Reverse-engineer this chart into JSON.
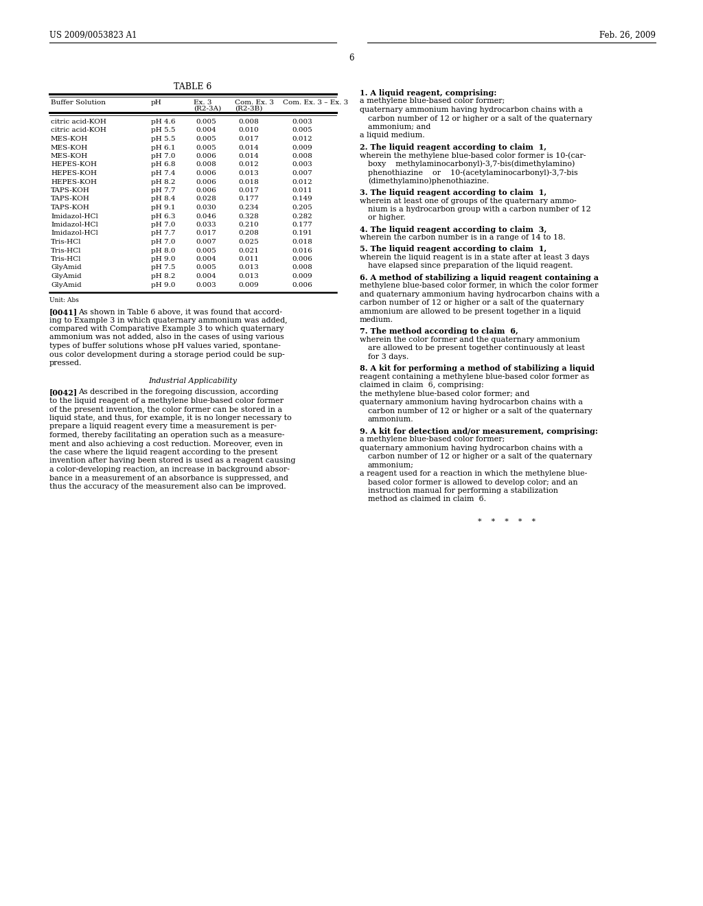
{
  "header_left": "US 2009/0053823 A1",
  "header_right": "Feb. 26, 2009",
  "page_number": "6",
  "table_title": "TABLE 6",
  "table_data": [
    [
      "citric acid-KOH",
      "pH 4.6",
      "0.005",
      "0.008",
      "0.003"
    ],
    [
      "citric acid-KOH",
      "pH 5.5",
      "0.004",
      "0.010",
      "0.005"
    ],
    [
      "MES-KOH",
      "pH 5.5",
      "0.005",
      "0.017",
      "0.012"
    ],
    [
      "MES-KOH",
      "pH 6.1",
      "0.005",
      "0.014",
      "0.009"
    ],
    [
      "MES-KOH",
      "pH 7.0",
      "0.006",
      "0.014",
      "0.008"
    ],
    [
      "HEPES-KOH",
      "pH 6.8",
      "0.008",
      "0.012",
      "0.003"
    ],
    [
      "HEPES-KOH",
      "pH 7.4",
      "0.006",
      "0.013",
      "0.007"
    ],
    [
      "HEPES-KOH",
      "pH 8.2",
      "0.006",
      "0.018",
      "0.012"
    ],
    [
      "TAPS-KOH",
      "pH 7.7",
      "0.006",
      "0.017",
      "0.011"
    ],
    [
      "TAPS-KOH",
      "pH 8.4",
      "0.028",
      "0.177",
      "0.149"
    ],
    [
      "TAPS-KOH",
      "pH 9.1",
      "0.030",
      "0.234",
      "0.205"
    ],
    [
      "Imidazol-HCl",
      "pH 6.3",
      "0.046",
      "0.328",
      "0.282"
    ],
    [
      "Imidazol-HCl",
      "pH 7.0",
      "0.033",
      "0.210",
      "0.177"
    ],
    [
      "Imidazol-HCl",
      "pH 7.7",
      "0.017",
      "0.208",
      "0.191"
    ],
    [
      "Tris-HCl",
      "pH 7.0",
      "0.007",
      "0.025",
      "0.018"
    ],
    [
      "Tris-HCl",
      "pH 8.0",
      "0.005",
      "0.021",
      "0.016"
    ],
    [
      "Tris-HCl",
      "pH 9.0",
      "0.004",
      "0.011",
      "0.006"
    ],
    [
      "GlyAmid",
      "pH 7.5",
      "0.005",
      "0.013",
      "0.008"
    ],
    [
      "GlyAmid",
      "pH 8.2",
      "0.004",
      "0.013",
      "0.009"
    ],
    [
      "GlyAmid",
      "pH 9.0",
      "0.003",
      "0.009",
      "0.006"
    ]
  ],
  "table_unit": "Unit: Abs",
  "section_title": "Industrial Applicability",
  "bg_color": "#ffffff",
  "text_color": "#000000"
}
